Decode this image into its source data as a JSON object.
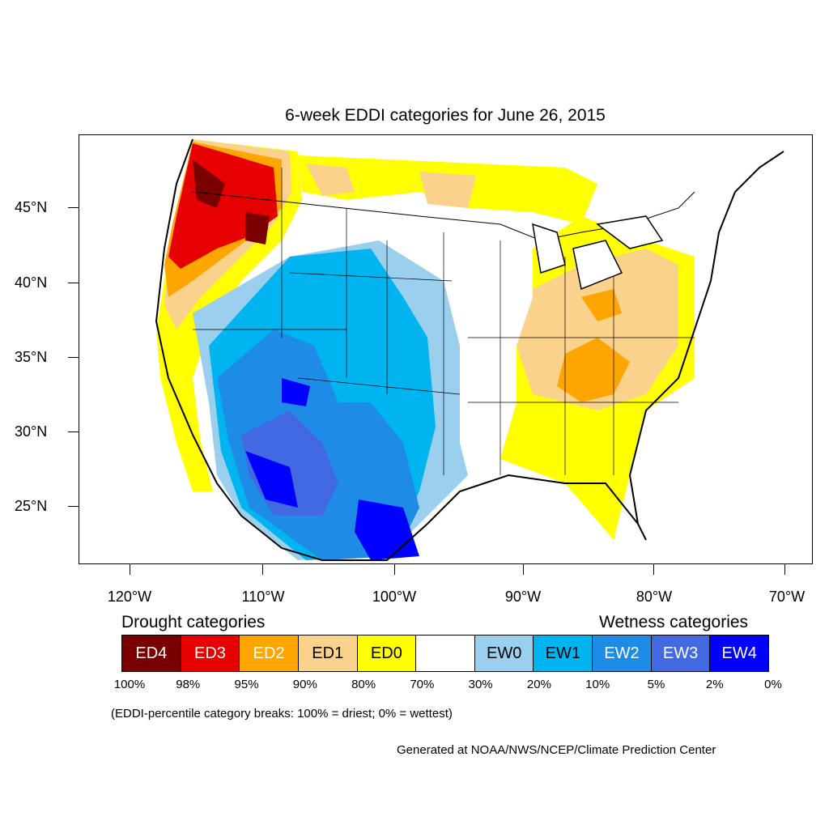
{
  "title": "6-week EDDI categories for June 26, 2015",
  "lat_labels": [
    "45°N",
    "40°N",
    "35°N",
    "30°N",
    "25°N"
  ],
  "lon_labels": [
    "120°W",
    "110°W",
    "100°W",
    "90°W",
    "80°W",
    "70°W"
  ],
  "legend": {
    "drought_heading": "Drought categories",
    "wetness_heading": "Wetness categories",
    "categories": [
      {
        "label": "ED4",
        "color": "#7a0000",
        "text_color": "#ffffff"
      },
      {
        "label": "ED3",
        "color": "#e60000",
        "text_color": "#ffffff"
      },
      {
        "label": "ED2",
        "color": "#ffa500",
        "text_color": "#ffffff"
      },
      {
        "label": "ED1",
        "color": "#fad28c",
        "text_color": "#000000"
      },
      {
        "label": "ED0",
        "color": "#ffff00",
        "text_color": "#000000"
      },
      {
        "label": "",
        "color": "#ffffff",
        "text_color": "#000000"
      },
      {
        "label": "EW0",
        "color": "#9acfee",
        "text_color": "#000000"
      },
      {
        "label": "EW1",
        "color": "#00b4f0",
        "text_color": "#000000"
      },
      {
        "label": "EW2",
        "color": "#1e8ce6",
        "text_color": "#ffffff"
      },
      {
        "label": "EW3",
        "color": "#4169e1",
        "text_color": "#ffffff"
      },
      {
        "label": "EW4",
        "color": "#0000ff",
        "text_color": "#ffffff"
      }
    ],
    "breaks": [
      "100%",
      "98%",
      "95%",
      "90%",
      "80%",
      "70%",
      "30%",
      "20%",
      "10%",
      "5%",
      "2%",
      "0%"
    ]
  },
  "note": "(EDDI-percentile category breaks: 100% = driest; 0% = wettest)",
  "credit": "Generated at NOAA/NWS/NCEP/Climate Prediction Center"
}
